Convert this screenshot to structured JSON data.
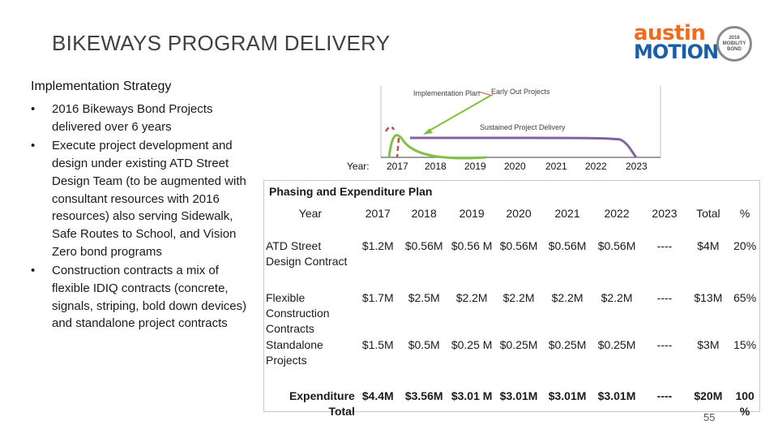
{
  "title": "BIKEWAYS PROGRAM DELIVERY",
  "logo": {
    "line1": "austin",
    "line2": "MOTION",
    "seal_line1": "2016",
    "seal_line2": "MOBILITY",
    "seal_line3": "BOND"
  },
  "strategy": {
    "heading": "Implementation Strategy",
    "bullets": [
      "2016 Bikeways Bond Projects delivered over 6 years",
      "Execute project development and design under existing ATD Street Design Team (to be augmented with consultant resources with 2016 resources) also serving Sidewalk, Safe Routes to School, and Vision Zero bond programs",
      "Construction contracts a mix of flexible IDIQ contracts (concrete, signals, striping, bold down devices) and standalone project contracts"
    ]
  },
  "timeline": {
    "label_implementation": "Implementation Plan",
    "label_early": "Early Out Projects",
    "label_sustained": "Sustained Project Delivery",
    "year_label": "Year:",
    "years": [
      "2017",
      "2018",
      "2019",
      "2020",
      "2021",
      "2022",
      "2023"
    ],
    "colors": {
      "implementation": "#7fc241",
      "early": "#c0504d",
      "sustained": "#8064a2",
      "axis": "#7f7f7f"
    }
  },
  "table": {
    "caption": "Phasing and Expenditure Plan",
    "headers": [
      "Year",
      "2017",
      "2018",
      "2019",
      "2020",
      "2021",
      "2022",
      "2023",
      "Total",
      "%"
    ],
    "rows": [
      {
        "label": "ATD Street Design Contract",
        "cells": [
          "$1.2M",
          "$0.56M",
          "$0.56 M",
          "$0.56M",
          "$0.56M",
          "$0.56M",
          "----",
          "$4M",
          "20%"
        ]
      },
      {
        "label": "Flexible Construction Contracts",
        "cells": [
          "$1.7M",
          "$2.5M",
          "$2.2M",
          "$2.2M",
          "$2.2M",
          "$2.2M",
          "----",
          "$13M",
          "65%"
        ]
      },
      {
        "label": "Standalone Projects",
        "cells": [
          "$1.5M",
          "$0.5M",
          "$0.25 M",
          "$0.25M",
          "$0.25M",
          "$0.25M",
          "----",
          "$3M",
          "15%"
        ]
      }
    ],
    "total": {
      "label": "Expenditure Total",
      "cells": [
        "$4.4M",
        "$3.56M",
        "$3.01 M",
        "$3.01M",
        "$3.01M",
        "$3.01M",
        "----",
        "$20M",
        "100 %"
      ]
    }
  },
  "page_number": "55"
}
